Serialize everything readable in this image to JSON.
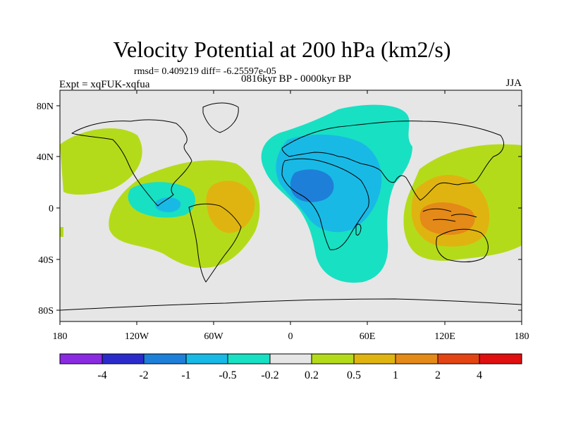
{
  "title": "Velocity Potential at 200 hPa (km2/s)",
  "stats_line": "rmsd= 0.409219 diff= -6.25597e-05",
  "experiment": "Expt = xqFUK-xqfua",
  "period": "0816kyr BP - 0000kyr BP",
  "season": "JJA",
  "lat_ticks": [
    "80N",
    "40N",
    "0",
    "40S",
    "80S"
  ],
  "lon_ticks": [
    "180",
    "120W",
    "60W",
    "0",
    "60E",
    "120E",
    "180"
  ],
  "colorbar": {
    "labels": [
      "-4",
      "-2",
      "-1",
      "-0.5",
      "-0.2",
      "0.2",
      "0.5",
      "1",
      "2",
      "4"
    ],
    "colors": [
      "#8a2be2",
      "#2b2bcc",
      "#1e7fd8",
      "#19b9e6",
      "#18e0c3",
      "#e6e6e6",
      "#b4db1a",
      "#e0b410",
      "#e48a18",
      "#e24414",
      "#e01010"
    ]
  },
  "background_color": "#e6e6e6"
}
